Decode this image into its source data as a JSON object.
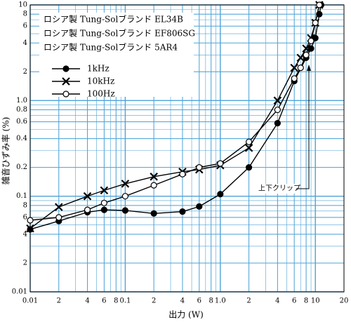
{
  "chart_data": {
    "type": "line",
    "subtitle_lines": [
      "ロシア製 Tung-Solブランド EL34B",
      "ロシア製 Tung-Solブランド EF806SG",
      "ロシア製 Tung-Solブランド 5AR4"
    ],
    "xlabel": "出力 (W)",
    "ylabel": "雑音ひずみ率 (%)",
    "annotation": "上下クリップ",
    "xscale": "log",
    "yscale": "log",
    "grid": true,
    "minor_grid": true,
    "grid_color": "#4fa3d6",
    "legend": "upper left",
    "xlim": [
      0.01,
      20
    ],
    "ylim": [
      0.01,
      10
    ],
    "xticks": [
      0.01,
      {
        "value": 0.02,
        "label": "2"
      },
      {
        "value": 0.04,
        "label": "4"
      },
      {
        "value": 0.06,
        "label": "6"
      },
      {
        "value": 0.08,
        "label": "8"
      },
      0.1,
      {
        "value": 0.2,
        "label": "2"
      },
      {
        "value": 0.4,
        "label": "4"
      },
      {
        "value": 0.6,
        "label": "6"
      },
      {
        "value": 0.8,
        "label": "8"
      },
      {
        "value": 1,
        "label": "1.0"
      },
      2,
      4,
      6,
      8,
      10,
      20
    ],
    "yticks": [
      0.01,
      {
        "value": 0.02,
        "label": "2"
      },
      {
        "value": 0.04,
        "label": "4"
      },
      {
        "value": 0.06,
        "label": "6"
      },
      {
        "value": 0.08,
        "label": "8"
      },
      0.1,
      0.2,
      0.4,
      0.6,
      0.8,
      {
        "value": 1,
        "label": "1.0"
      },
      2,
      4,
      6,
      8,
      10
    ],
    "series": [
      {
        "name": "1kHz",
        "color": "#000000",
        "marker": "filled-circle",
        "x": [
          0.01,
          0.02,
          0.04,
          0.06,
          0.1,
          0.2,
          0.4,
          0.6,
          1,
          2,
          4,
          6,
          8,
          9,
          10,
          11,
          11.5
        ],
        "values": [
          0.045,
          0.055,
          0.068,
          0.072,
          0.071,
          0.066,
          0.069,
          0.078,
          0.105,
          0.2,
          0.58,
          1.6,
          2.8,
          3.5,
          4.5,
          8,
          10
        ]
      },
      {
        "name": "10kHz",
        "color": "#000000",
        "marker": "x",
        "x": [
          0.01,
          0.02,
          0.04,
          0.06,
          0.1,
          0.2,
          0.4,
          0.6,
          1,
          2,
          4,
          6,
          7,
          8,
          9,
          10,
          11
        ],
        "values": [
          0.046,
          0.077,
          0.1,
          0.115,
          0.135,
          0.16,
          0.18,
          0.19,
          0.21,
          0.32,
          1.0,
          2.2,
          2.8,
          3.5,
          4.5,
          6.5,
          10
        ]
      },
      {
        "name": "100Hz",
        "color": "#000000",
        "marker": "open-circle",
        "x": [
          0.01,
          0.02,
          0.04,
          0.06,
          0.1,
          0.2,
          0.4,
          0.6,
          1,
          2,
          4,
          6,
          7,
          8,
          9,
          10,
          11
        ],
        "values": [
          0.056,
          0.06,
          0.072,
          0.085,
          0.1,
          0.13,
          0.17,
          0.2,
          0.22,
          0.37,
          0.8,
          1.7,
          2.2,
          3,
          4.2,
          6.5,
          10
        ]
      }
    ]
  }
}
